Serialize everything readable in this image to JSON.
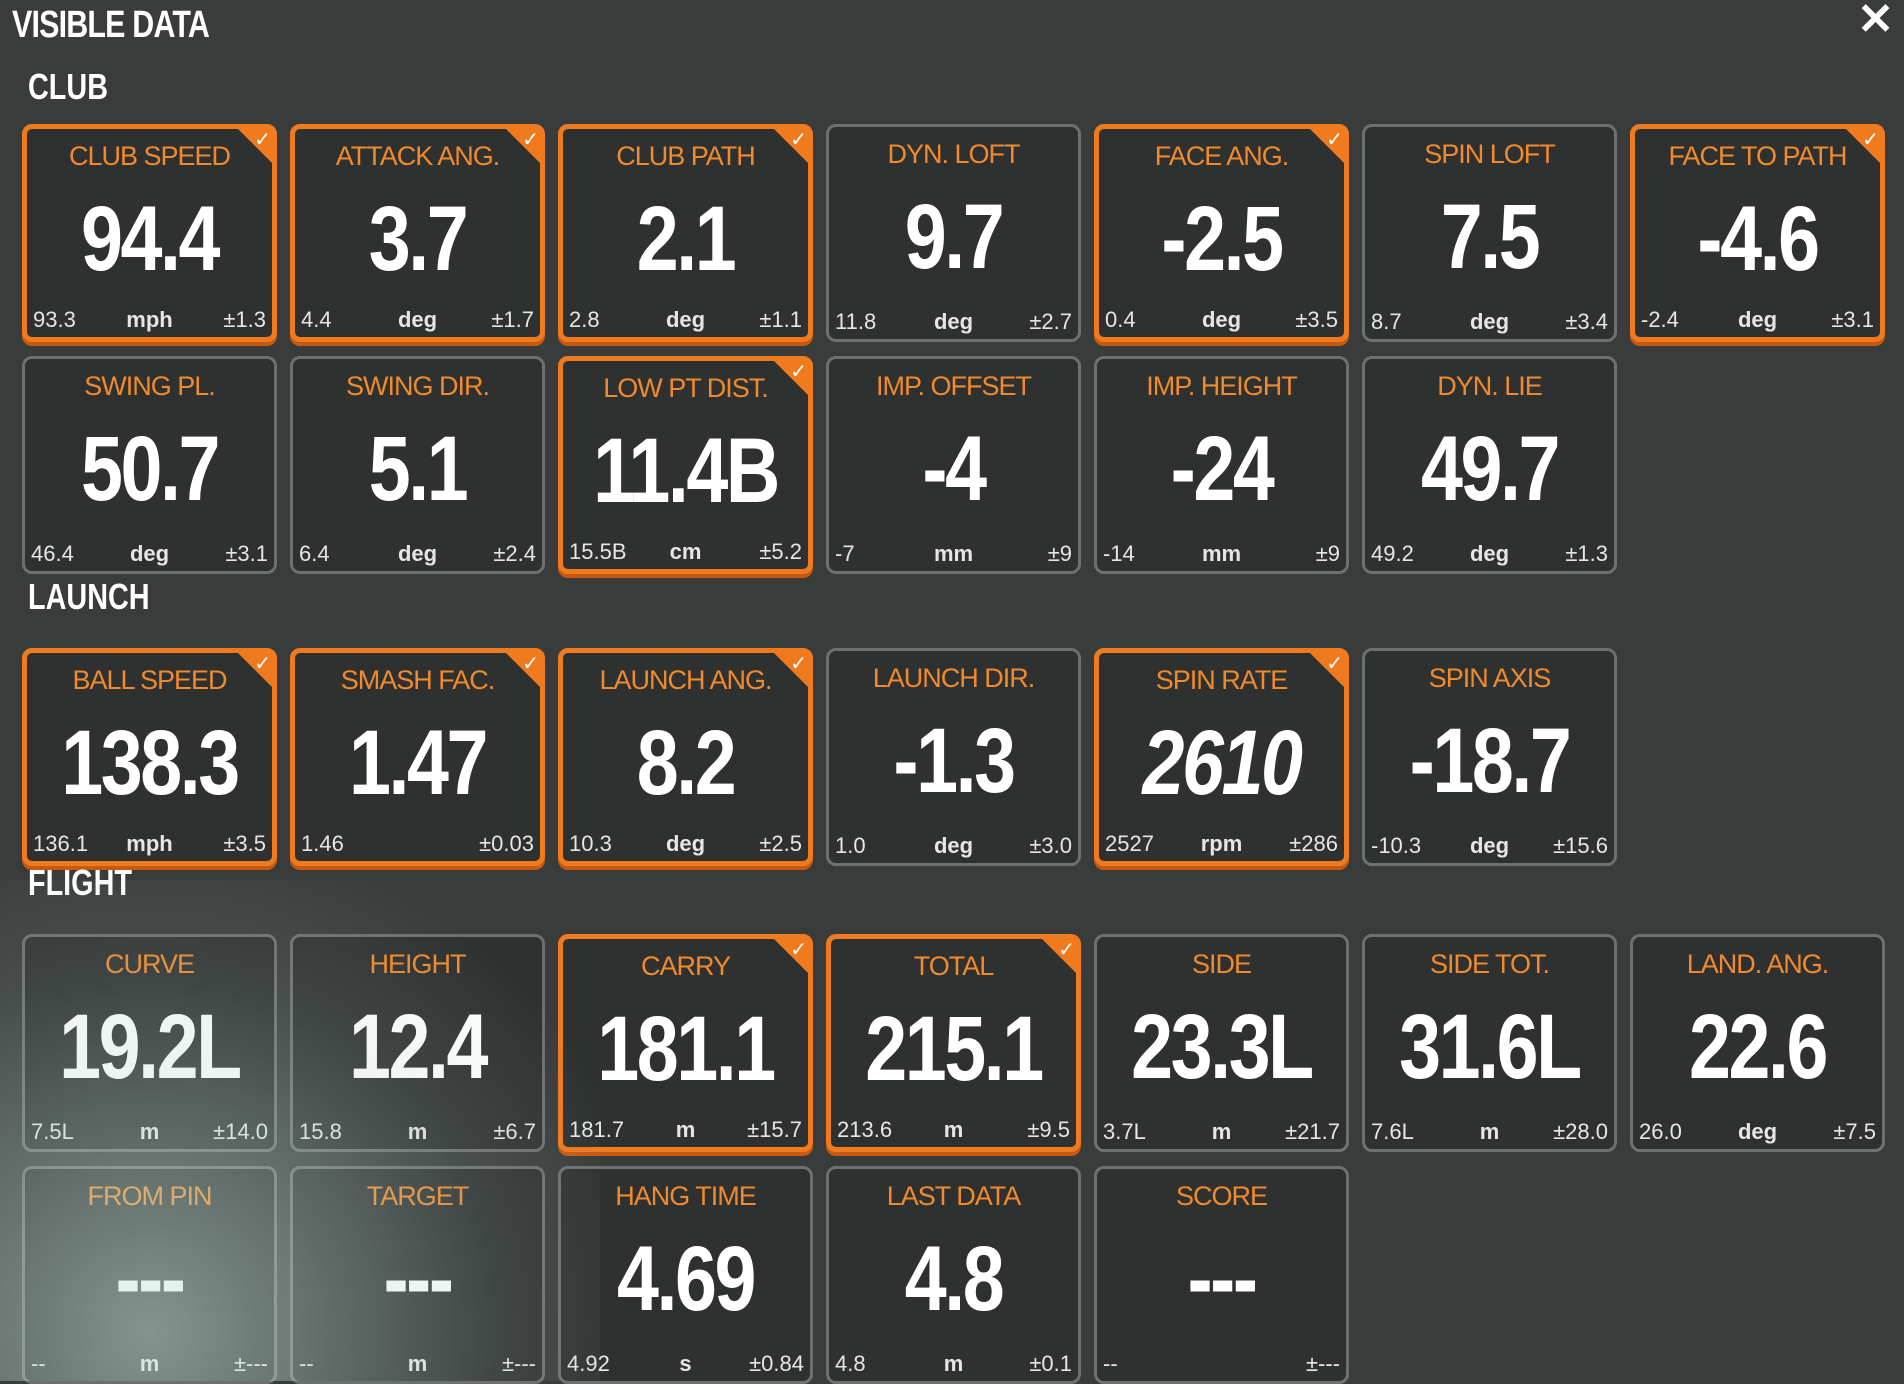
{
  "title": "VISIBLE DATA",
  "close_icon": "close-icon",
  "colors": {
    "accent": "#f07a1e",
    "label": "#f08a2c",
    "background": "#3a3c3c"
  },
  "sections": [
    {
      "label": "CLUB",
      "rows": [
        [
          {
            "label": "CLUB SPEED",
            "value": "94.4",
            "min": "93.3",
            "unit": "mph",
            "tol": "±1.3",
            "highlighted": true
          },
          {
            "label": "ATTACK ANG.",
            "value": "3.7",
            "min": "4.4",
            "unit": "deg",
            "tol": "±1.7",
            "highlighted": true
          },
          {
            "label": "CLUB PATH",
            "value": "2.1",
            "min": "2.8",
            "unit": "deg",
            "tol": "±1.1",
            "highlighted": true
          },
          {
            "label": "DYN. LOFT",
            "value": "9.7",
            "min": "11.8",
            "unit": "deg",
            "tol": "±2.7",
            "highlighted": false
          },
          {
            "label": "FACE ANG.",
            "value": "-2.5",
            "min": "0.4",
            "unit": "deg",
            "tol": "±3.5",
            "highlighted": true
          },
          {
            "label": "SPIN LOFT",
            "value": "7.5",
            "min": "8.7",
            "unit": "deg",
            "tol": "±3.4",
            "highlighted": false
          },
          {
            "label": "FACE TO PATH",
            "value": "-4.6",
            "min": "-2.4",
            "unit": "deg",
            "tol": "±3.1",
            "highlighted": true
          }
        ],
        [
          {
            "label": "SWING PL.",
            "value": "50.7",
            "min": "46.4",
            "unit": "deg",
            "tol": "±3.1",
            "highlighted": false
          },
          {
            "label": "SWING DIR.",
            "value": "5.1",
            "min": "6.4",
            "unit": "deg",
            "tol": "±2.4",
            "highlighted": false
          },
          {
            "label": "LOW PT DIST.",
            "value": "11.4B",
            "min": "15.5B",
            "unit": "cm",
            "tol": "±5.2",
            "highlighted": true
          },
          {
            "label": "IMP. OFFSET",
            "value": "-4",
            "min": "-7",
            "unit": "mm",
            "tol": "±9",
            "highlighted": false
          },
          {
            "label": "IMP. HEIGHT",
            "value": "-24",
            "min": "-14",
            "unit": "mm",
            "tol": "±9",
            "highlighted": false
          },
          {
            "label": "DYN. LIE",
            "value": "49.7",
            "min": "49.2",
            "unit": "deg",
            "tol": "±1.3",
            "highlighted": false
          }
        ]
      ]
    },
    {
      "label": "LAUNCH",
      "rows": [
        [
          {
            "label": "BALL SPEED",
            "value": "138.3",
            "min": "136.1",
            "unit": "mph",
            "tol": "±3.5",
            "highlighted": true
          },
          {
            "label": "SMASH FAC.",
            "value": "1.47",
            "min": "1.46",
            "unit": "",
            "tol": "±0.03",
            "highlighted": true
          },
          {
            "label": "LAUNCH ANG.",
            "value": "8.2",
            "min": "10.3",
            "unit": "deg",
            "tol": "±2.5",
            "highlighted": true
          },
          {
            "label": "LAUNCH DIR.",
            "value": "-1.3",
            "min": "1.0",
            "unit": "deg",
            "tol": "±3.0",
            "highlighted": false
          },
          {
            "label": "SPIN RATE",
            "value": "2610",
            "min": "2527",
            "unit": "rpm",
            "tol": "±286",
            "highlighted": true,
            "italic": true
          },
          {
            "label": "SPIN AXIS",
            "value": "-18.7",
            "min": "-10.3",
            "unit": "deg",
            "tol": "±15.6",
            "highlighted": false
          }
        ]
      ]
    },
    {
      "label": "FLIGHT",
      "rows": [
        [
          {
            "label": "CURVE",
            "value": "19.2L",
            "min": "7.5L",
            "unit": "m",
            "tol": "±14.0",
            "highlighted": false
          },
          {
            "label": "HEIGHT",
            "value": "12.4",
            "min": "15.8",
            "unit": "m",
            "tol": "±6.7",
            "highlighted": false
          },
          {
            "label": "CARRY",
            "value": "181.1",
            "min": "181.7",
            "unit": "m",
            "tol": "±15.7",
            "highlighted": true
          },
          {
            "label": "TOTAL",
            "value": "215.1",
            "min": "213.6",
            "unit": "m",
            "tol": "±9.5",
            "highlighted": true
          },
          {
            "label": "SIDE",
            "value": "23.3L",
            "min": "3.7L",
            "unit": "m",
            "tol": "±21.7",
            "highlighted": false
          },
          {
            "label": "SIDE TOT.",
            "value": "31.6L",
            "min": "7.6L",
            "unit": "m",
            "tol": "±28.0",
            "highlighted": false
          },
          {
            "label": "LAND. ANG.",
            "value": "22.6",
            "min": "26.0",
            "unit": "deg",
            "tol": "±7.5",
            "highlighted": false
          }
        ],
        [
          {
            "label": "FROM PIN",
            "value": "---",
            "min": "--",
            "unit": "m",
            "tol": "±---",
            "highlighted": false
          },
          {
            "label": "TARGET",
            "value": "---",
            "min": "--",
            "unit": "m",
            "tol": "±---",
            "highlighted": false
          },
          {
            "label": "HANG TIME",
            "value": "4.69",
            "min": "4.92",
            "unit": "s",
            "tol": "±0.84",
            "highlighted": false
          },
          {
            "label": "LAST DATA",
            "value": "4.8",
            "min": "4.8",
            "unit": "m",
            "tol": "±0.1",
            "highlighted": false
          },
          {
            "label": "SCORE",
            "value": "---",
            "min": "--",
            "unit": "",
            "tol": "±---",
            "highlighted": false
          }
        ]
      ]
    }
  ]
}
